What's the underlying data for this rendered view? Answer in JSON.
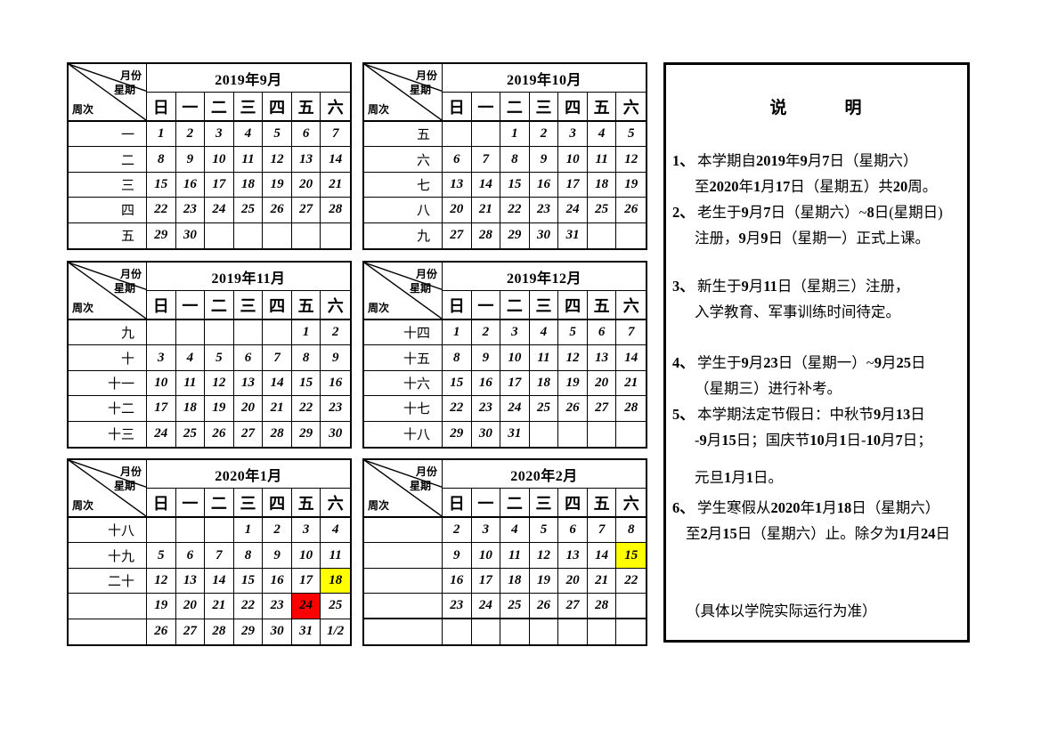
{
  "colors": {
    "background": "#ffffff",
    "border": "#000000",
    "text": "#000000",
    "highlight_yellow": "#ffff00",
    "highlight_red": "#ff0000"
  },
  "corner_labels": {
    "month": "月份",
    "weekday": "星期",
    "week": "周次"
  },
  "day_headers": [
    "日",
    "一",
    "二",
    "三",
    "四",
    "五",
    "六"
  ],
  "calendars": [
    {
      "title": "2019年9月",
      "rows": [
        {
          "week": "一",
          "days": [
            "1",
            "2",
            "3",
            "4",
            "5",
            "6",
            "7"
          ]
        },
        {
          "week": "二",
          "days": [
            "8",
            "9",
            "10",
            "11",
            "12",
            "13",
            "14"
          ]
        },
        {
          "week": "三",
          "days": [
            "15",
            "16",
            "17",
            "18",
            "19",
            "20",
            "21"
          ]
        },
        {
          "week": "四",
          "days": [
            "22",
            "23",
            "24",
            "25",
            "26",
            "27",
            "28"
          ]
        },
        {
          "week": "五",
          "days": [
            "29",
            "30",
            "",
            "",
            "",
            "",
            ""
          ]
        }
      ]
    },
    {
      "title": "2019年10月",
      "rows": [
        {
          "week": "五",
          "days": [
            "",
            "",
            "1",
            "2",
            "3",
            "4",
            "5"
          ]
        },
        {
          "week": "六",
          "days": [
            "6",
            "7",
            "8",
            "9",
            "10",
            "11",
            "12"
          ]
        },
        {
          "week": "七",
          "days": [
            "13",
            "14",
            "15",
            "16",
            "17",
            "18",
            "19"
          ]
        },
        {
          "week": "八",
          "days": [
            "20",
            "21",
            "22",
            "23",
            "24",
            "25",
            "26"
          ]
        },
        {
          "week": "九",
          "days": [
            "27",
            "28",
            "29",
            "30",
            "31",
            "",
            ""
          ]
        }
      ]
    },
    {
      "title": "2019年11月",
      "rows": [
        {
          "week": "九",
          "days": [
            "",
            "",
            "",
            "",
            "",
            "1",
            "2"
          ]
        },
        {
          "week": "十",
          "days": [
            "3",
            "4",
            "5",
            "6",
            "7",
            "8",
            "9"
          ]
        },
        {
          "week": "十一",
          "days": [
            "10",
            "11",
            "12",
            "13",
            "14",
            "15",
            "16"
          ]
        },
        {
          "week": "十二",
          "days": [
            "17",
            "18",
            "19",
            "20",
            "21",
            "22",
            "23"
          ]
        },
        {
          "week": "十三",
          "days": [
            "24",
            "25",
            "26",
            "27",
            "28",
            "29",
            "30"
          ]
        }
      ]
    },
    {
      "title": "2019年12月",
      "rows": [
        {
          "week": "十四",
          "days": [
            "1",
            "2",
            "3",
            "4",
            "5",
            "6",
            "7"
          ]
        },
        {
          "week": "十五",
          "days": [
            "8",
            "9",
            "10",
            "11",
            "12",
            "13",
            "14"
          ]
        },
        {
          "week": "十六",
          "days": [
            "15",
            "16",
            "17",
            "18",
            "19",
            "20",
            "21"
          ]
        },
        {
          "week": "十七",
          "days": [
            "22",
            "23",
            "24",
            "25",
            "26",
            "27",
            "28"
          ]
        },
        {
          "week": "十八",
          "days": [
            "29",
            "30",
            "31",
            "",
            "",
            "",
            ""
          ]
        }
      ]
    },
    {
      "title": "2020年1月",
      "rows": [
        {
          "week": "十八",
          "days": [
            "",
            "",
            "",
            "1",
            "2",
            "3",
            "4"
          ]
        },
        {
          "week": "十九",
          "days": [
            "5",
            "6",
            "7",
            "8",
            "9",
            "10",
            "11"
          ]
        },
        {
          "week": "二十",
          "days": [
            "12",
            "13",
            "14",
            "15",
            "16",
            "17",
            {
              "v": "18",
              "bg": "yellow"
            }
          ]
        },
        {
          "week": "",
          "days": [
            "19",
            "20",
            "21",
            "22",
            "23",
            {
              "v": "24",
              "bg": "red"
            },
            "25"
          ]
        },
        {
          "week": "",
          "days": [
            "26",
            "27",
            "28",
            "29",
            "30",
            "31",
            "1/2"
          ]
        }
      ]
    },
    {
      "title": "2020年2月",
      "thick_divider_after_row": 3,
      "rows": [
        {
          "week": "",
          "days": [
            "2",
            "3",
            "4",
            "5",
            "6",
            "7",
            "8"
          ]
        },
        {
          "week": "",
          "days": [
            "9",
            "10",
            "11",
            "12",
            "13",
            "14",
            {
              "v": "15",
              "bg": "yellow"
            }
          ]
        },
        {
          "week": "",
          "days": [
            "16",
            "17",
            "18",
            "19",
            "20",
            "21",
            "22"
          ]
        },
        {
          "week": "",
          "days": [
            "23",
            "24",
            "25",
            "26",
            "27",
            "28",
            ""
          ]
        },
        {
          "week": "",
          "days": [
            "",
            "",
            "",
            "",
            "",
            "",
            ""
          ]
        }
      ]
    }
  ],
  "notes": {
    "title": "说　　　明",
    "items": [
      {
        "num": "1、",
        "lines": [
          "本学期自2019年9月7日（星期六）",
          "至2020年1月17日（星期五）共20周。"
        ]
      },
      {
        "num": "2、",
        "lines": [
          "老生于9月7日（星期六）~8日(星期日)",
          "注册，9月9日（星期一）正式上课。"
        ]
      },
      {
        "num": "3、",
        "lines": [
          "新生于9月11日（星期三）注册，",
          "入学教育、军事训练时间待定。"
        ]
      },
      {
        "num": "4、",
        "lines": [
          "学生于9月23日（星期一）~9月25日",
          "（星期三）进行补考。"
        ]
      },
      {
        "num": "5、",
        "lines": [
          "本学期法定节假日：中秋节9月13日",
          "-9月15日；国庆节10月1日-10月7日；",
          "元旦1月1日。"
        ]
      },
      {
        "num": "6、",
        "lines": [
          "学生寒假从2020年1月18日（星期六）",
          "至2月15日（星期六）止。除夕为1月24日"
        ]
      }
    ],
    "footer": "（具体以学院实际运行为准）"
  }
}
